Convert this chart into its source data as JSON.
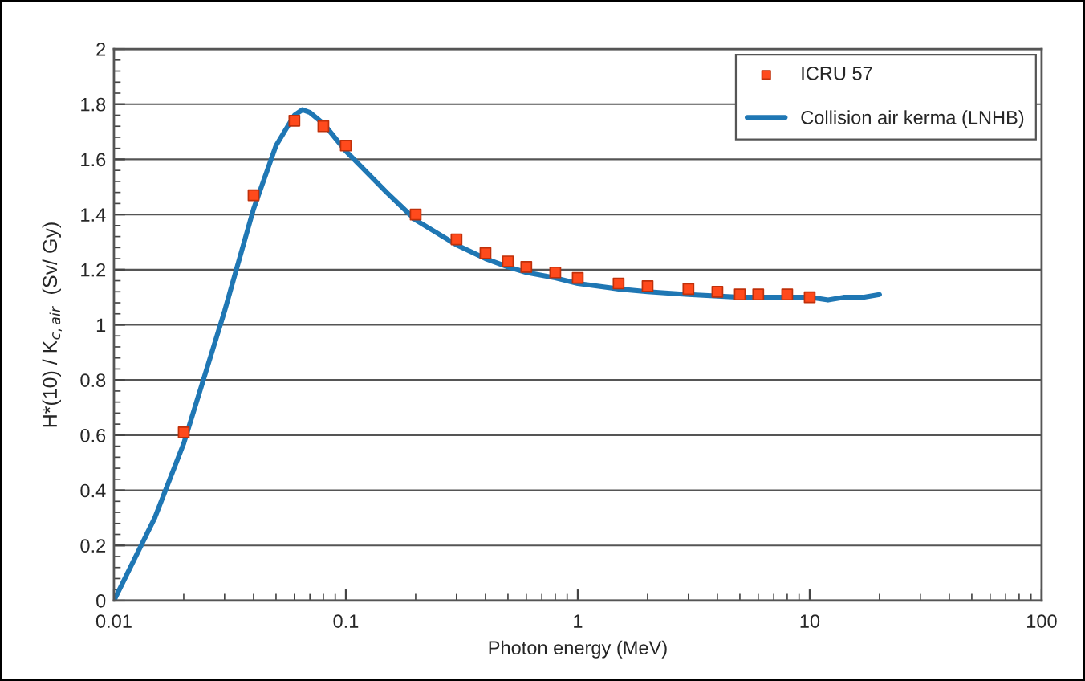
{
  "chart_data": {
    "type": "scatter",
    "xlabel": "Photon energy (MeV)",
    "ylabel": "H*(10) / K$_{c,air}$  (Sv/ Gy)",
    "log": "x",
    "xlim": [
      0.01,
      100
    ],
    "xticks": [
      0.01,
      0.1,
      1,
      10,
      100
    ],
    "ylim": [
      0,
      2
    ],
    "yticks": [
      0,
      0.2,
      0.4,
      0.6,
      0.8,
      1,
      1.2,
      1.4,
      1.6,
      1.8,
      2
    ],
    "grid": "y",
    "legend": "top right",
    "series": [
      {
        "name": "ICRU 57",
        "marker": "square",
        "color": "#ff4a1c",
        "x": [
          0.02,
          0.04,
          0.06,
          0.08,
          0.1,
          0.2,
          0.3,
          0.4,
          0.5,
          0.6,
          0.8,
          1,
          1.5,
          2,
          3,
          4,
          5,
          6,
          8,
          10
        ],
        "values": [
          0.61,
          1.47,
          1.74,
          1.72,
          1.65,
          1.4,
          1.31,
          1.26,
          1.23,
          1.21,
          1.19,
          1.17,
          1.15,
          1.14,
          1.13,
          1.12,
          1.11,
          1.11,
          1.11,
          1.1
        ]
      },
      {
        "name": "Collision air kerma (LNHB)",
        "type": "line",
        "color": "#1f77b4",
        "x": [
          0.01,
          0.015,
          0.02,
          0.03,
          0.04,
          0.05,
          0.06,
          0.065,
          0.07,
          0.08,
          0.1,
          0.15,
          0.2,
          0.3,
          0.4,
          0.5,
          0.6,
          0.8,
          1,
          1.5,
          2,
          3,
          5,
          8,
          10,
          12,
          14,
          17,
          20
        ],
        "values": [
          0.0,
          0.3,
          0.57,
          1.05,
          1.42,
          1.65,
          1.76,
          1.78,
          1.77,
          1.73,
          1.63,
          1.48,
          1.38,
          1.29,
          1.24,
          1.21,
          1.19,
          1.17,
          1.15,
          1.13,
          1.12,
          1.11,
          1.1,
          1.1,
          1.1,
          1.09,
          1.1,
          1.1,
          1.11
        ]
      }
    ]
  }
}
